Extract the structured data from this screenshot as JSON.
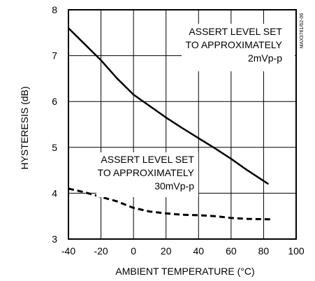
{
  "chart_data": {
    "type": "line",
    "xlabel": "AMBIENT TEMPERATURE (°C)",
    "ylabel": "HYSTERESIS (dB)",
    "xlim": [
      -40,
      100
    ],
    "ylim": [
      3,
      8
    ],
    "x_ticks": [
      -40,
      -20,
      0,
      20,
      40,
      60,
      80,
      100
    ],
    "y_ticks": [
      3,
      4,
      5,
      6,
      7,
      8
    ],
    "grid": true,
    "figure_id": "MAX3761/62-06",
    "series": [
      {
        "style": "solid",
        "points": [
          [
            -40,
            7.6
          ],
          [
            -30,
            7.25
          ],
          [
            -20,
            6.9
          ],
          [
            -10,
            6.5
          ],
          [
            0,
            6.15
          ],
          [
            10,
            5.9
          ],
          [
            20,
            5.65
          ],
          [
            30,
            5.42
          ],
          [
            40,
            5.2
          ],
          [
            50,
            4.98
          ],
          [
            60,
            4.75
          ],
          [
            70,
            4.5
          ],
          [
            83,
            4.2
          ]
        ]
      },
      {
        "style": "dashed",
        "points": [
          [
            -40,
            4.1
          ],
          [
            -30,
            4.02
          ],
          [
            -20,
            3.92
          ],
          [
            -10,
            3.82
          ],
          [
            0,
            3.68
          ],
          [
            10,
            3.6
          ],
          [
            20,
            3.56
          ],
          [
            30,
            3.53
          ],
          [
            40,
            3.52
          ],
          [
            50,
            3.5
          ],
          [
            60,
            3.46
          ],
          [
            70,
            3.44
          ],
          [
            84,
            3.43
          ]
        ]
      }
    ],
    "annotations": [
      {
        "lines": [
          "ASSERT LEVEL SET",
          "TO APPROXIMATELY",
          "2mVp-p"
        ]
      },
      {
        "lines": [
          "ASSERT LEVEL SET",
          "TO APPROXIMATELY",
          "30mVp-p"
        ]
      }
    ]
  }
}
